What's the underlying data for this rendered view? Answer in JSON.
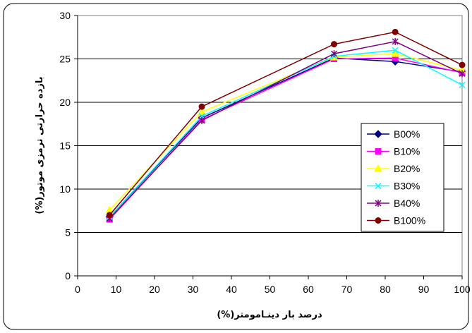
{
  "chart_data": {
    "type": "line",
    "xlabel": "درصد بار دینـامومتر(%)",
    "ylabel": "بازده حرارتی ترمزی موتور(%)",
    "xlim": [
      0,
      100
    ],
    "ylim": [
      0,
      30
    ],
    "xticks": [
      0,
      10,
      20,
      30,
      40,
      50,
      60,
      70,
      80,
      90,
      100
    ],
    "yticks": [
      0,
      5,
      10,
      15,
      20,
      25,
      30
    ],
    "grid": "horizontal",
    "legend_position": "right",
    "x": [
      8.3,
      32.3,
      66.7,
      82.6,
      100
    ],
    "series": [
      {
        "name": "B00%",
        "values": [
          6.8,
          18.2,
          25.1,
          24.7,
          23.5
        ],
        "color": "#000080",
        "marker": "diamond"
      },
      {
        "name": "B10%",
        "values": [
          6.5,
          18.0,
          25.0,
          25.1,
          23.4
        ],
        "color": "#ff00ff",
        "marker": "square"
      },
      {
        "name": "B20%",
        "values": [
          7.6,
          18.9,
          25.2,
          25.6,
          23.7
        ],
        "color": "#ffff00",
        "marker": "triangle"
      },
      {
        "name": "B30%",
        "values": [
          6.8,
          18.4,
          25.3,
          26.0,
          22.0
        ],
        "color": "#00ffff",
        "marker": "x"
      },
      {
        "name": "B40%",
        "values": [
          6.6,
          17.9,
          25.6,
          27.0,
          23.3
        ],
        "color": "#800080",
        "marker": "star"
      },
      {
        "name": "B100%",
        "values": [
          7.0,
          19.5,
          26.7,
          28.1,
          24.3
        ],
        "color": "#800000",
        "marker": "circle"
      }
    ]
  }
}
